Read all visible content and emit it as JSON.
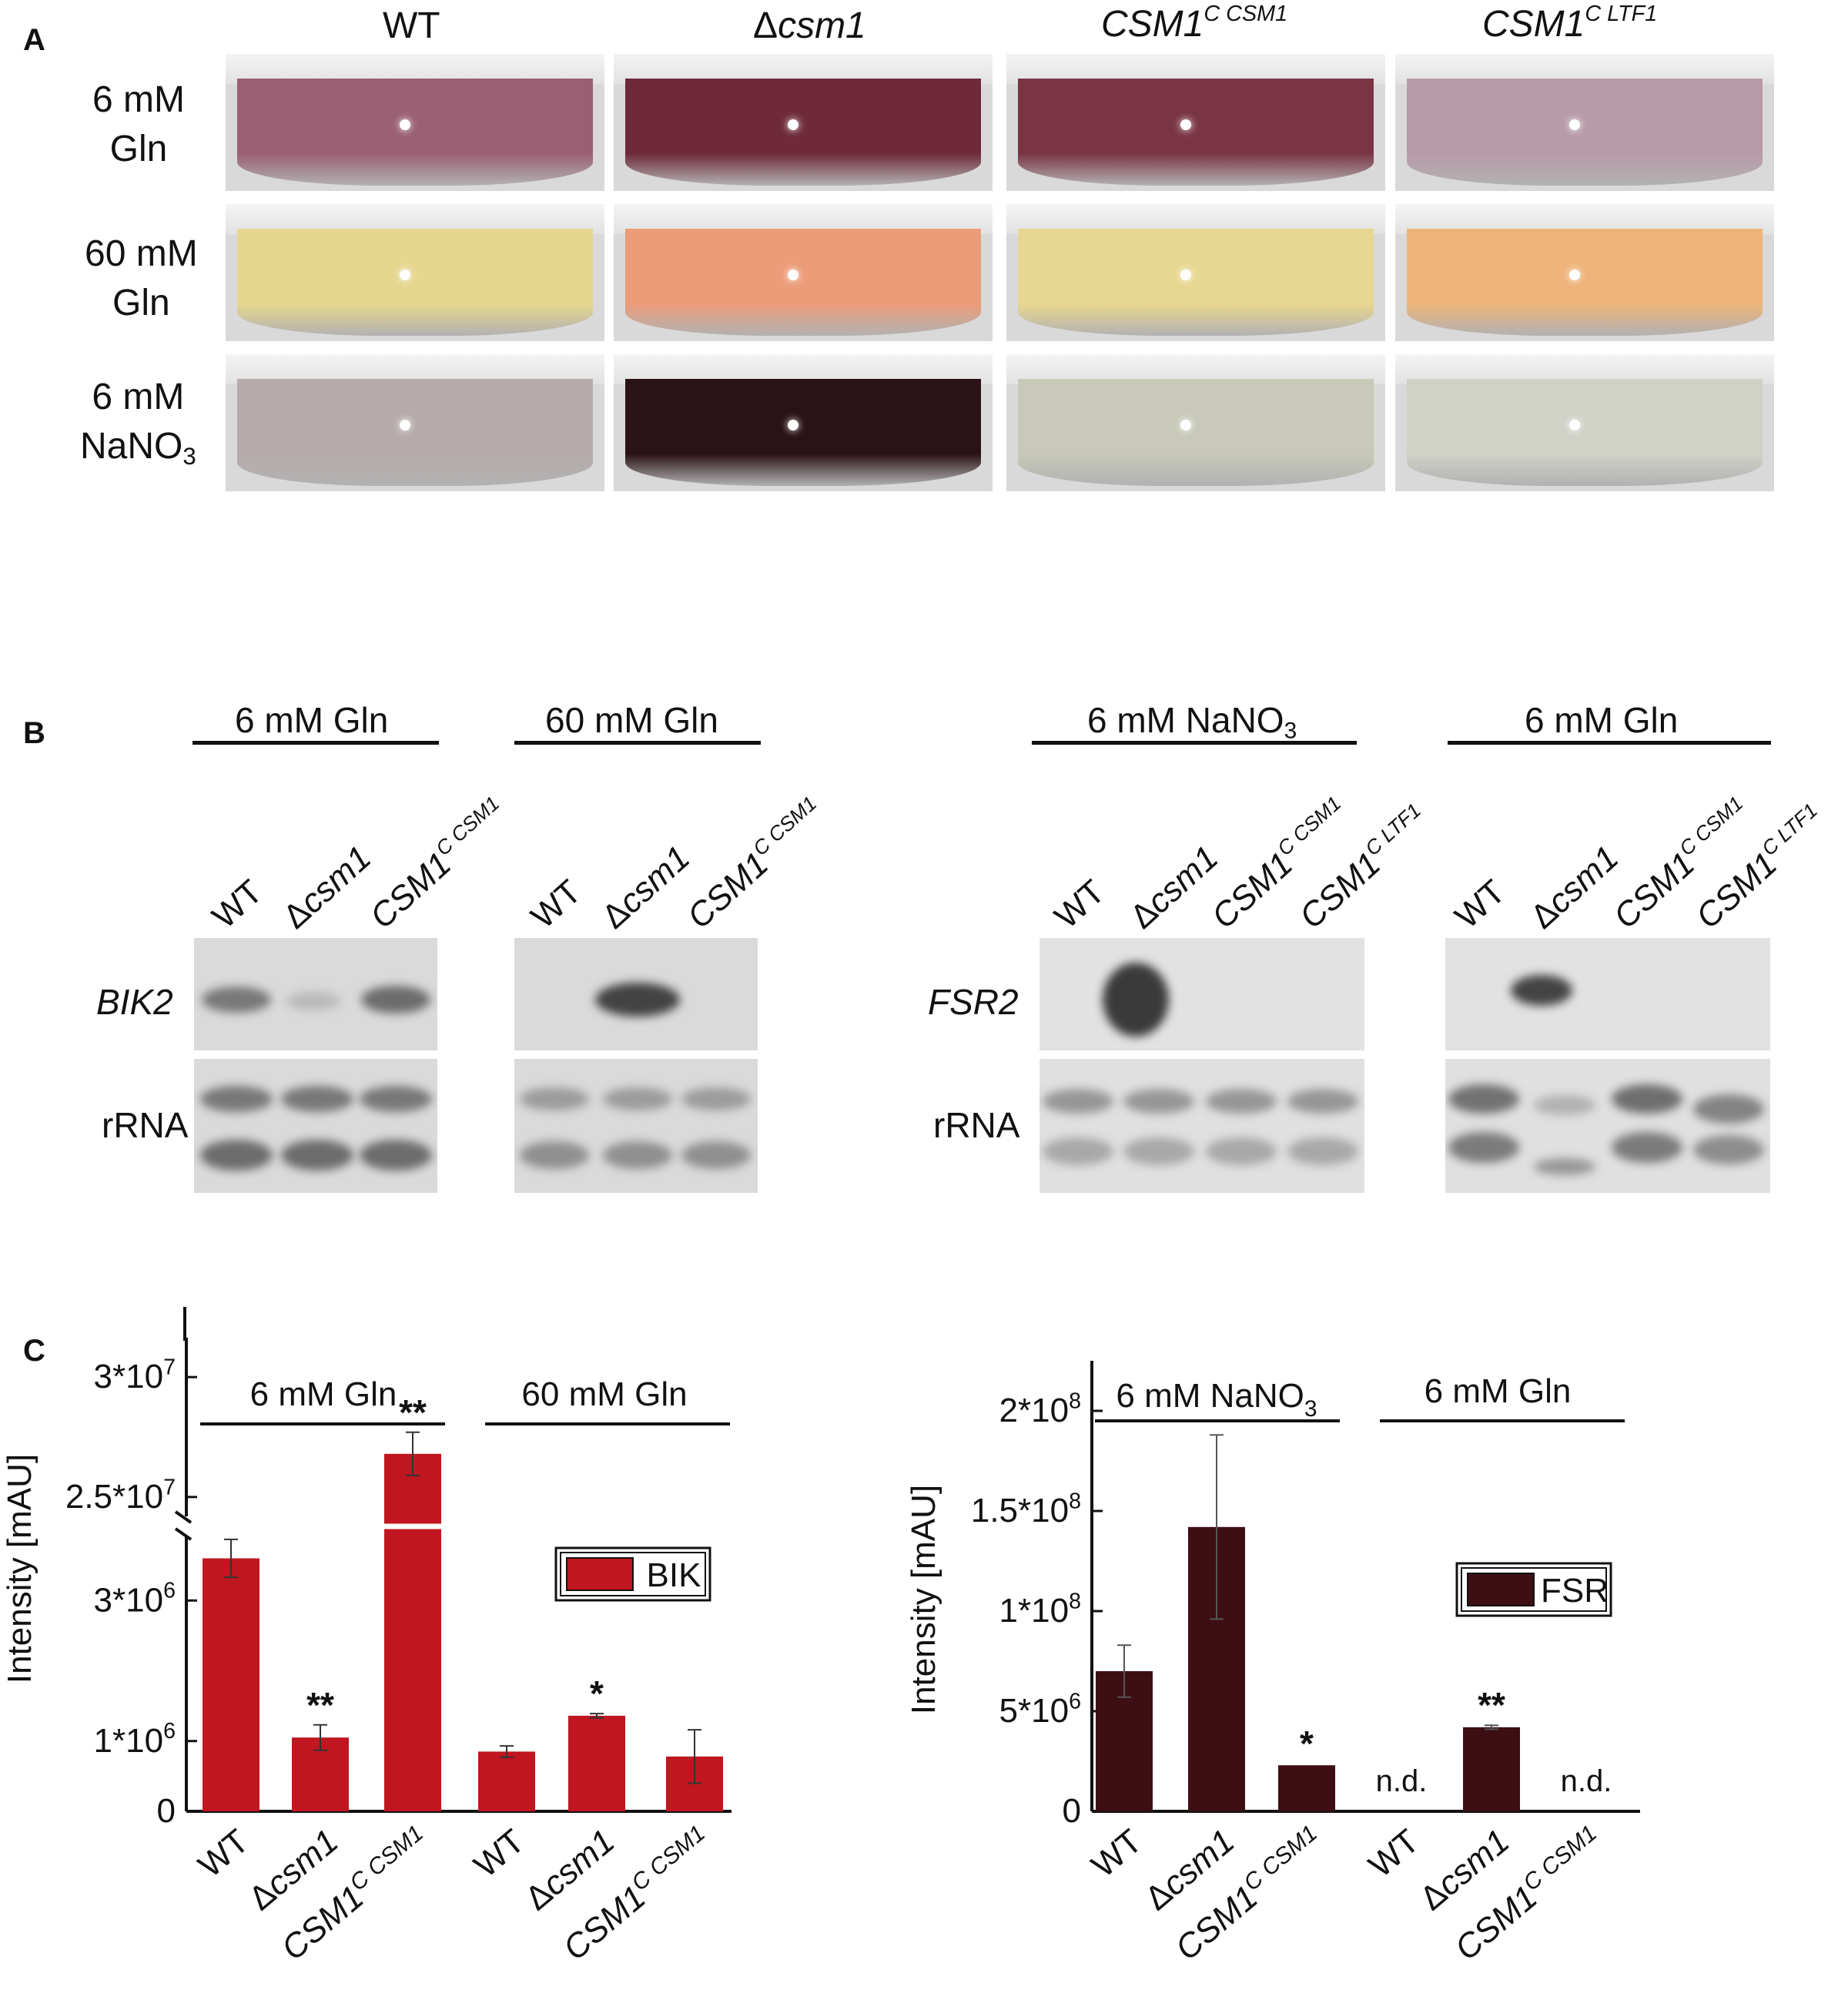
{
  "panelA": {
    "letter": "A",
    "columns": {
      "wt": "WT",
      "delta": "Δ",
      "csm1": "csm1",
      "compl_csm1_base": "CSM1",
      "compl_csm1_sup": "C CSM1",
      "compl_ltf1_base": "CSM1",
      "compl_ltf1_sup": "C LTF1"
    },
    "rows": {
      "r1_line1": "6 mM",
      "r1_line2": "Gln",
      "r2_line1": "60 mM",
      "r2_line2": "Gln",
      "r3_line1": "6 mM",
      "r3_line2_main": "NaNO",
      "r3_line2_sub": "3"
    },
    "flask_colors": [
      [
        "#9a5f73",
        "#6e2a3a",
        "#7a3545",
        "#b89aa8"
      ],
      [
        "#e6d68e",
        "#ec9c78",
        "#e8d790",
        "#eeb47a"
      ],
      [
        "#b6abab",
        "#2a1216",
        "#c8c9b8",
        "#d0d2c8"
      ]
    ]
  },
  "panelB": {
    "letter": "B",
    "group1": "6 mM Gln",
    "group2": "60 mM Gln",
    "group3_main": "6 mM NaNO",
    "group3_sub": "3",
    "group4": "6 mM Gln",
    "lane_wt": "WT",
    "lane_delta": "Δ",
    "lane_csm1": "csm1",
    "lane_compl_base": "CSM1",
    "lane_sup_csm1": "C CSM1",
    "lane_sup_ltf1": "C LTF1",
    "row_bik2": "BIK2",
    "row_fsr2": "FSR2",
    "row_rrna": "rRNA"
  },
  "panelC": {
    "letter": "C",
    "left": {
      "group1": "6 mM Gln",
      "group2": "60 mM Gln",
      "ylabel": "Intensity [mAU]",
      "legend": "BIK",
      "color": "#c0161f",
      "upper_ticks": [
        "3*10",
        "2.5*10"
      ],
      "upper_tick_exp": "7",
      "lower_ticks": [
        "3*10",
        "1*10",
        "0"
      ],
      "lower_tick_exp": "6",
      "categories": [
        "WT",
        "Δcsm1",
        "CSM1 C CSM1",
        "WT",
        "Δcsm1",
        "CSM1 C CSM1"
      ],
      "significance": [
        "",
        "**",
        "**",
        "",
        "*",
        ""
      ]
    },
    "right": {
      "group1_main": "6 mM NaNO",
      "group1_sub": "3",
      "group2": "6 mM Gln",
      "ylabel": "Intensity [mAU]",
      "legend": "FSR",
      "color": "#3d0f14",
      "ticks": [
        "2*10",
        "1.5*10",
        "1*10",
        "5*10",
        "0"
      ],
      "tick_exps": [
        "8",
        "8",
        "8",
        "6",
        ""
      ],
      "categories": [
        "WT",
        "Δcsm1",
        "CSM1 C CSM1",
        "WT",
        "Δcsm1",
        "CSM1 C CSM1"
      ],
      "significance": [
        "",
        "",
        "*",
        "",
        "**",
        ""
      ],
      "nd_label": "n.d."
    }
  },
  "chart_data": [
    {
      "type": "bar",
      "title": "",
      "ylabel": "Intensity [mAU]",
      "axis_break": true,
      "categories": [
        "WT (6 mM Gln)",
        "Δcsm1 (6 mM Gln)",
        "CSM1 C CSM1 (6 mM Gln)",
        "WT (60 mM Gln)",
        "Δcsm1 (60 mM Gln)",
        "CSM1 C CSM1 (60 mM Gln)"
      ],
      "series": [
        {
          "name": "BIK",
          "values": [
            3600000,
            1050000,
            26800000,
            850000,
            1360000,
            780000
          ],
          "errors": [
            270000,
            180000,
            900000,
            80000,
            30000,
            380000
          ]
        }
      ]
    },
    {
      "type": "bar",
      "title": "",
      "ylabel": "Intensity [mAU]",
      "categories": [
        "WT (6 mM NaNO3)",
        "Δcsm1 (6 mM NaNO3)",
        "CSM1 C CSM1 (6 mM NaNO3)",
        "WT (6 mM Gln)",
        "Δcsm1 (6 mM Gln)",
        "CSM1 C CSM1 (6 mM Gln)"
      ],
      "series": [
        {
          "name": "FSR",
          "values": [
            70000000,
            142000000,
            23000000,
            null,
            42000000,
            null
          ],
          "errors": [
            13000000,
            46000000,
            0,
            null,
            1000000,
            null
          ]
        }
      ]
    }
  ]
}
